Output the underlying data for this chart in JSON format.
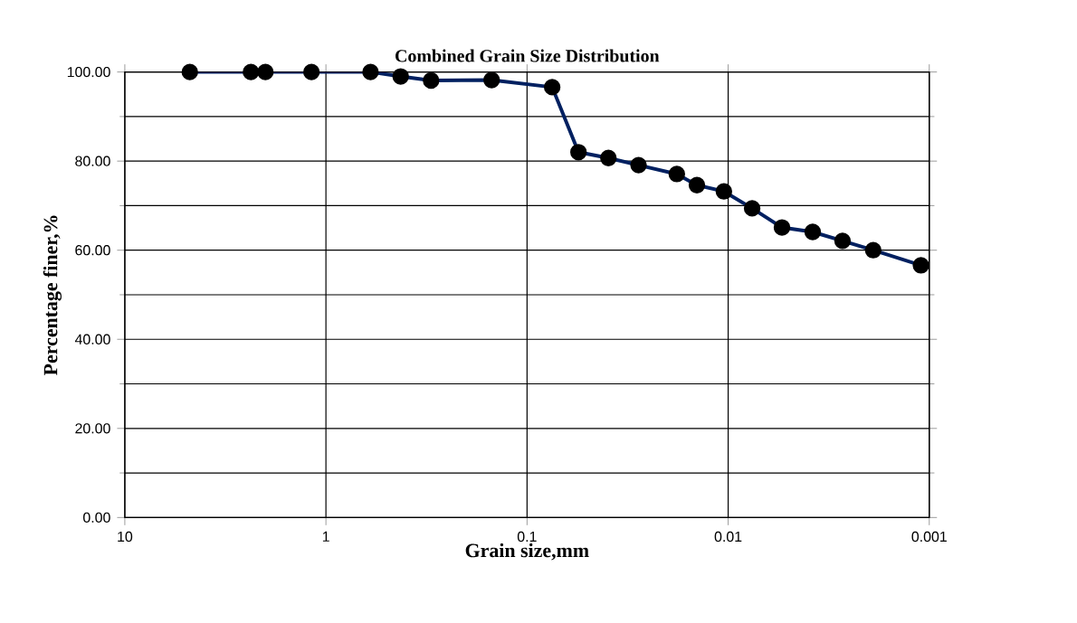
{
  "chart_data": {
    "type": "line",
    "title": "Combined Grain Size Distribution",
    "xlabel": "Grain size,mm",
    "ylabel": "Percentage  finer,%",
    "x": [
      4.75,
      2.36,
      2.0,
      1.18,
      0.6,
      0.425,
      0.3,
      0.15,
      0.075,
      0.0555,
      0.0394,
      0.0279,
      0.018,
      0.0143,
      0.0105,
      0.0076,
      0.0054,
      0.0038,
      0.0027,
      0.0019,
      0.0011
    ],
    "series": [
      {
        "color": "#002060",
        "values": [
          100.0,
          100.0,
          100.0,
          100.0,
          100.0,
          99.0,
          98.1,
          98.2,
          96.6,
          82.0,
          80.7,
          79.1,
          77.1,
          74.6,
          73.2,
          69.4,
          65.1,
          64.1,
          62.1,
          60.0,
          56.6
        ]
      }
    ],
    "xlim": [
      10,
      0.001
    ],
    "ylim": [
      0,
      100
    ],
    "log": "x",
    "xticks": [
      10,
      1,
      0.1,
      0.01,
      0.001
    ],
    "yticks": [
      {
        "value": 0,
        "label": "0.00"
      },
      {
        "value": 20,
        "label": "20.00"
      },
      {
        "value": 40,
        "label": "40.00"
      },
      {
        "value": 60,
        "label": "60.00"
      },
      {
        "value": 80,
        "label": "80.00"
      },
      {
        "value": 100,
        "label": "100.00"
      }
    ],
    "grid": true,
    "marker": "circle",
    "line_style": "solid"
  }
}
